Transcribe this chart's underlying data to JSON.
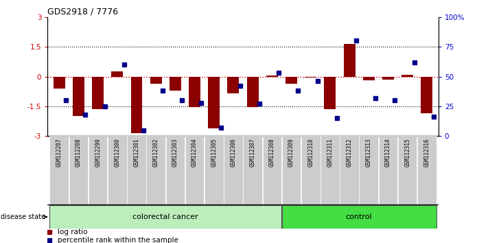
{
  "title": "GDS2918 / 7776",
  "samples": [
    "GSM112207",
    "GSM112208",
    "GSM112299",
    "GSM112300",
    "GSM112301",
    "GSM112302",
    "GSM112303",
    "GSM112304",
    "GSM112305",
    "GSM112306",
    "GSM112307",
    "GSM112308",
    "GSM112309",
    "GSM112310",
    "GSM112311",
    "GSM112312",
    "GSM112313",
    "GSM112314",
    "GSM112315",
    "GSM112316"
  ],
  "log_ratio": [
    -0.6,
    -2.0,
    -1.65,
    0.25,
    -2.85,
    -0.35,
    -0.7,
    -1.55,
    -2.6,
    -0.85,
    -1.55,
    0.05,
    -0.35,
    -0.05,
    -1.65,
    1.65,
    -0.2,
    -0.15,
    0.1,
    -1.85
  ],
  "percentile": [
    30,
    18,
    25,
    60,
    5,
    38,
    30,
    28,
    7,
    42,
    27,
    53,
    38,
    46,
    15,
    80,
    32,
    30,
    62,
    16
  ],
  "colorectal_count": 12,
  "control_count": 8,
  "bar_color": "#8B0000",
  "dot_color": "#00008B",
  "zero_line_color": "#cc0000",
  "ylim": [
    -3,
    3
  ],
  "y2lim": [
    0,
    100
  ],
  "colorectal_color": "#bbeebb",
  "control_color": "#44dd44",
  "label_bg": "#cccccc"
}
